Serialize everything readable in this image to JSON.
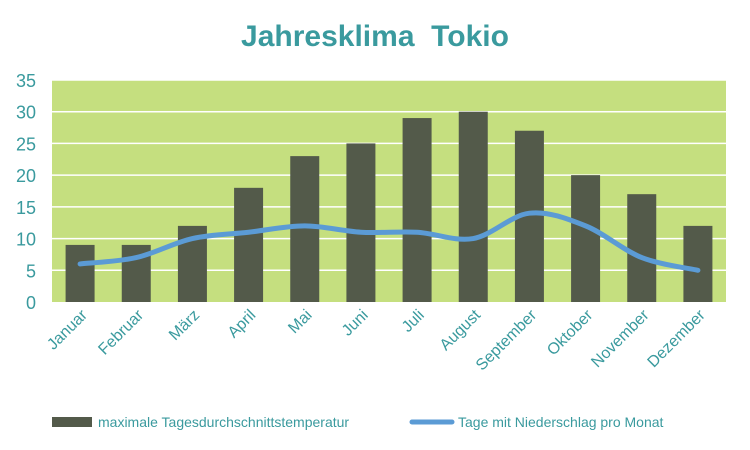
{
  "chart_data": {
    "type": "bar+line",
    "title": "Jahresklima  Tokio",
    "categories": [
      "Januar",
      "Februar",
      "März",
      "April",
      "Mai",
      "Juni",
      "Juli",
      "August",
      "September",
      "Oktober",
      "November",
      "Dezember"
    ],
    "series": [
      {
        "name": "maximale Tagesdurchschnittstemperatur",
        "type": "bar",
        "color": "#535a4a",
        "values": [
          9,
          9,
          12,
          18,
          23,
          25,
          29,
          30,
          27,
          20,
          17,
          12
        ]
      },
      {
        "name": "Tage mit Niederschlag pro Monat",
        "type": "line",
        "color": "#5b9bd5",
        "values": [
          6,
          7,
          10,
          11,
          12,
          11,
          11,
          10,
          14,
          12,
          7,
          5
        ]
      }
    ],
    "ylim": [
      0,
      35
    ],
    "yticks": [
      0,
      5,
      10,
      15,
      20,
      25,
      30,
      35
    ],
    "grid": true,
    "legend_position": "bottom",
    "plot_background": "#c5df7f",
    "gridline_color": "#ffffff",
    "text_color": "#3a9a9e"
  }
}
